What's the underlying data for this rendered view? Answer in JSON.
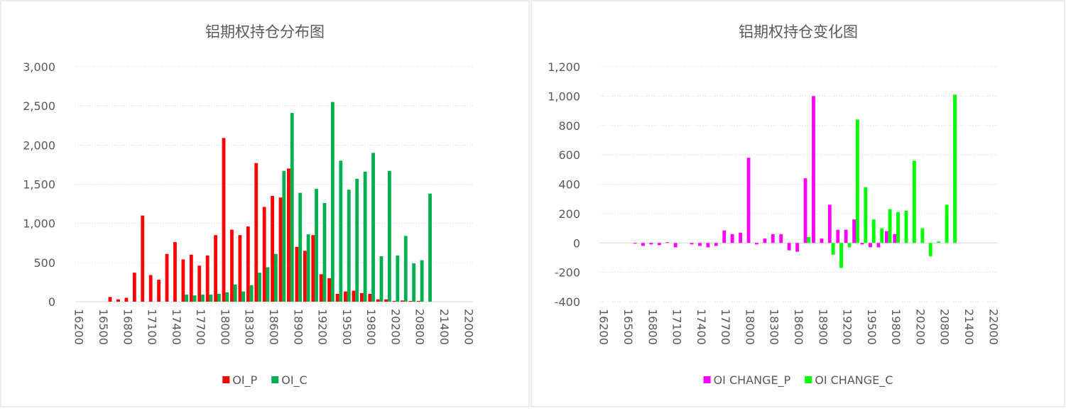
{
  "chart_data": [
    {
      "type": "bar",
      "title": "铝期权持仓分布图",
      "categories": [
        "16200",
        null,
        null,
        "16500",
        null,
        null,
        "16800",
        null,
        null,
        "17100",
        null,
        null,
        "17400",
        null,
        null,
        "17700",
        null,
        null,
        "18000",
        null,
        null,
        "18300",
        null,
        null,
        "18600",
        null,
        null,
        "18900",
        null,
        null,
        "19200",
        null,
        null,
        "19500",
        null,
        null,
        "19800",
        null,
        null,
        "20200",
        null,
        null,
        "20800",
        null,
        null,
        "21400",
        null,
        null,
        "22000"
      ],
      "series": [
        {
          "name": "OI_P",
          "color": "#ff0000",
          "values": [
            0,
            0,
            0,
            0,
            60,
            30,
            50,
            370,
            1100,
            340,
            280,
            610,
            760,
            540,
            600,
            460,
            590,
            850,
            2090,
            920,
            850,
            960,
            1770,
            1210,
            1350,
            1330,
            1700,
            700,
            650,
            850,
            350,
            300,
            100,
            130,
            140,
            110,
            100,
            30,
            30,
            10,
            15,
            10,
            10,
            0,
            0,
            0,
            0,
            0,
            0
          ]
        },
        {
          "name": "OI_C",
          "color": "#00b050",
          "values": [
            0,
            0,
            0,
            0,
            0,
            0,
            0,
            0,
            0,
            0,
            0,
            0,
            0,
            90,
            80,
            90,
            90,
            100,
            120,
            220,
            130,
            210,
            370,
            440,
            610,
            1670,
            2410,
            1390,
            860,
            1440,
            1260,
            2550,
            1800,
            1430,
            1570,
            1660,
            1900,
            580,
            1670,
            590,
            840,
            490,
            530,
            1380,
            0,
            0,
            0,
            0,
            0
          ]
        }
      ],
      "ylim": [
        0,
        3000
      ],
      "yticks": [
        0,
        500,
        {
          "value": 1000,
          "label": "1,000"
        },
        {
          "value": 1500,
          "label": "1,500"
        },
        {
          "value": 2000,
          "label": "2,000"
        },
        {
          "value": 2500,
          "label": "2,500"
        },
        {
          "value": 3000,
          "label": "3,000"
        }
      ],
      "grid": true
    },
    {
      "type": "bar",
      "title": "铝期权持仓变化图",
      "categories": [
        "16200",
        null,
        null,
        "16500",
        null,
        null,
        "16800",
        null,
        null,
        "17100",
        null,
        null,
        "17400",
        null,
        null,
        "17700",
        null,
        null,
        "18000",
        null,
        null,
        "18300",
        null,
        null,
        "18600",
        null,
        null,
        "18900",
        null,
        null,
        "19200",
        null,
        null,
        "19500",
        null,
        null,
        "19800",
        null,
        null,
        "20200",
        null,
        null,
        "20800",
        null,
        null,
        "21400",
        null,
        null,
        "22000"
      ],
      "series": [
        {
          "name": "OI CHANGE_P",
          "color": "#ff00ff",
          "values": [
            0,
            0,
            0,
            0,
            -5,
            -20,
            -10,
            -15,
            5,
            -30,
            0,
            -10,
            -20,
            -30,
            -20,
            85,
            60,
            70,
            580,
            -10,
            30,
            60,
            60,
            -50,
            -60,
            440,
            1000,
            30,
            260,
            90,
            90,
            160,
            -10,
            -30,
            -30,
            80,
            60,
            0,
            0,
            0,
            0,
            0,
            0,
            0,
            0,
            0,
            0,
            0,
            0
          ]
        },
        {
          "name": "OI CHANGE_C",
          "color": "#00ff00",
          "values": [
            0,
            0,
            0,
            0,
            0,
            0,
            0,
            0,
            0,
            0,
            0,
            0,
            0,
            0,
            0,
            0,
            0,
            0,
            0,
            0,
            0,
            0,
            0,
            0,
            0,
            40,
            0,
            0,
            -80,
            -170,
            -30,
            840,
            380,
            160,
            100,
            230,
            210,
            220,
            560,
            100,
            -90,
            10,
            260,
            1010,
            0,
            0,
            0,
            0,
            0
          ]
        }
      ],
      "ylim": [
        -400,
        1200
      ],
      "yticks": [
        -400,
        -200,
        0,
        200,
        400,
        600,
        800,
        {
          "value": 1000,
          "label": "1,000"
        },
        {
          "value": 1200,
          "label": "1,200"
        }
      ],
      "grid": true
    }
  ]
}
